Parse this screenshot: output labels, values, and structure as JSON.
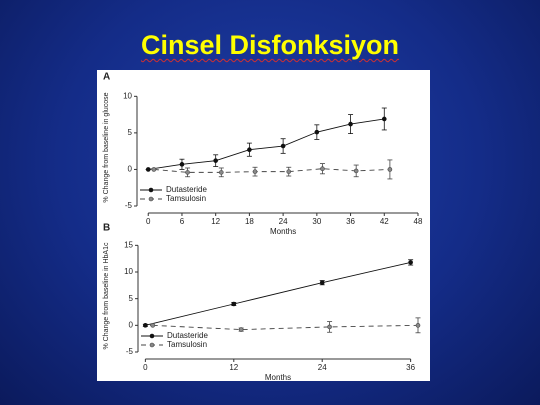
{
  "slide_title": "Cinsel Disfonksiyon",
  "chart_data": [
    {
      "type": "line",
      "label": "A",
      "x_label": "Months",
      "y_label": "% Change from baseline in glucose",
      "xlim": [
        -2,
        48
      ],
      "xticks": [
        0,
        6,
        12,
        18,
        24,
        30,
        36,
        42,
        48
      ],
      "ylim": [
        -5,
        11
      ],
      "yticks": [
        -5,
        0,
        5,
        10
      ],
      "grid": false,
      "legend": "lower-left",
      "series": [
        {
          "name": "Dutasteride",
          "color": "#111111",
          "line_style": "solid",
          "marker_fill": "#111111",
          "x": [
            0,
            6,
            12,
            18,
            24,
            30,
            36,
            42
          ],
          "values": [
            0,
            0.7,
            1.2,
            2.7,
            3.2,
            5.1,
            6.2,
            6.9
          ],
          "errors": [
            0,
            0.7,
            0.8,
            0.9,
            1.0,
            1.0,
            1.3,
            1.5
          ]
        },
        {
          "name": "Tamsulosin",
          "color": "#444444",
          "line_style": "dashed",
          "marker_fill": "#888888",
          "x": [
            1,
            7,
            13,
            19,
            25,
            31,
            37,
            43
          ],
          "values": [
            0,
            -0.4,
            -0.4,
            -0.3,
            -0.3,
            0.1,
            -0.2,
            0
          ],
          "errors": [
            0,
            0.6,
            0.6,
            0.6,
            0.6,
            0.7,
            0.8,
            1.3
          ]
        }
      ]
    },
    {
      "type": "line",
      "label": "B",
      "x_label": "Months",
      "y_label": "% Change from baseline in HbA1c",
      "xlim": [
        -1,
        37
      ],
      "xticks": [
        0,
        12,
        24,
        36
      ],
      "ylim": [
        -5,
        16
      ],
      "yticks": [
        -5,
        0,
        5,
        10,
        15
      ],
      "grid": false,
      "legend": "lower-left",
      "series": [
        {
          "name": "Dutasteride",
          "color": "#111111",
          "line_style": "solid",
          "marker_fill": "#111111",
          "x": [
            0,
            12,
            24,
            36
          ],
          "values": [
            0,
            4,
            8,
            11.8
          ],
          "errors": [
            0.2,
            0.3,
            0.4,
            0.5
          ]
        },
        {
          "name": "Tamsulosin",
          "color": "#444444",
          "line_style": "dashed",
          "marker_fill": "#888888",
          "x": [
            1,
            13,
            25,
            37
          ],
          "values": [
            0,
            -0.8,
            -0.3,
            0
          ],
          "errors": [
            0,
            0.3,
            1.0,
            1.4
          ]
        }
      ]
    }
  ]
}
